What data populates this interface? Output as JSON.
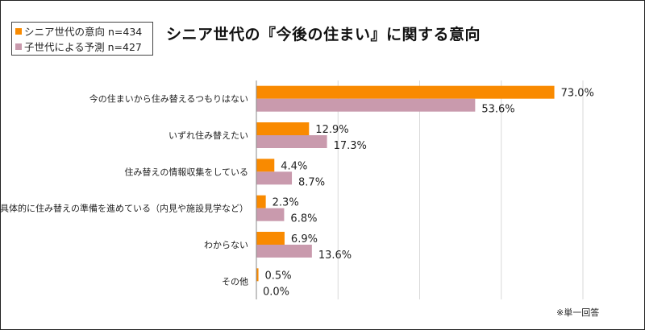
{
  "title": "シニア世代の『今後の住まい』に関する意向",
  "footnote": "※単一回答",
  "chart_data": {
    "type": "bar",
    "orientation": "horizontal",
    "title": "シニア世代の『今後の住まい』に関する意向",
    "categories": [
      "今の住まいから住み替えるつもりはない",
      "いずれ住み替えたい",
      "住み替えの情報収集をしている",
      "具体的に住み替えの準備を進めている（内見や施設見学など）",
      "わからない",
      "その他"
    ],
    "series": [
      {
        "name": "シニア世代の意向 n=434",
        "color": "#F98A00",
        "values": [
          73.0,
          12.9,
          4.4,
          2.3,
          6.9,
          0.5
        ],
        "labels": [
          "73.0%",
          "12.9%",
          "4.4%",
          "2.3%",
          "6.9%",
          "0.5%"
        ]
      },
      {
        "name": "子世代による予測 n=427",
        "color": "#C99AAD",
        "values": [
          53.6,
          17.3,
          8.7,
          6.8,
          13.6,
          0.0
        ],
        "labels": [
          "53.6%",
          "17.3%",
          "8.7%",
          "6.8%",
          "13.6%",
          "0.0%"
        ]
      }
    ],
    "xlim": [
      0,
      80
    ],
    "grid": true,
    "legend": "top-left"
  }
}
